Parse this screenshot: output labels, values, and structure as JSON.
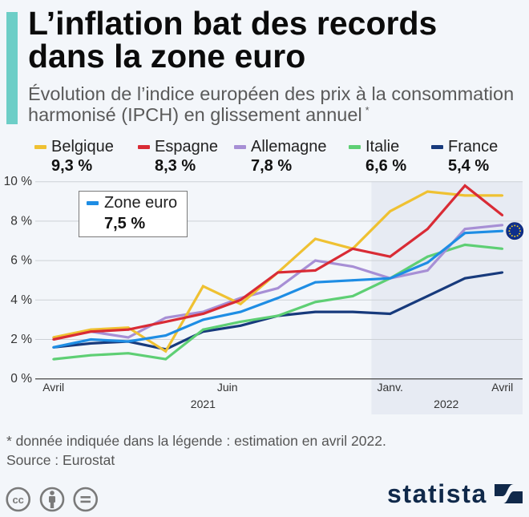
{
  "header": {
    "title_lines": [
      "L’inflation bat des records",
      "dans la zone euro"
    ],
    "subtitle_lines": [
      "Évolution de l’indice européen des prix à la consommation",
      "harmonisé (IPCH) en glissement annuel"
    ],
    "subtitle_footnote_marker": "*"
  },
  "footer": {
    "note": "* donnée indiquée dans la légende : estimation en avril 2022.",
    "source": "Source : Eurostat",
    "brand": "statista",
    "cc_label": "cc",
    "license_icons": [
      "creative-commons-icon",
      "attribution-icon",
      "no-derivatives-icon"
    ]
  },
  "colors": {
    "accent_bar": "#6dcec7",
    "background": "#f3f6fa",
    "highlight_band": "#e7ebf3",
    "brand_navy": "#10294a",
    "eu_flag_blue": "#0e2f8c",
    "eu_flag_stars": "#f2d01c"
  },
  "chart_data": {
    "type": "line",
    "title": "L’inflation bat des records dans la zone euro",
    "subtitle": "Évolution de l’indice européen des prix à la consommation harmonisé (IPCH) en glissement annuel *",
    "xlabel": "",
    "ylabel": "",
    "x": [
      "2021-04",
      "2021-05",
      "2021-06",
      "2021-07",
      "2021-08",
      "2021-09",
      "2021-10",
      "2021-11",
      "2021-12",
      "2022-01",
      "2022-02",
      "2022-03",
      "2022-04"
    ],
    "x_ticks": [
      {
        "label": "Avril",
        "at": 0
      },
      {
        "label": "Juin",
        "at": 4.65
      },
      {
        "label": "Janv.",
        "at": 9
      },
      {
        "label": "Avril",
        "at": 12
      }
    ],
    "x_groups": [
      {
        "label": "2021",
        "from": 0,
        "to": 8,
        "highlighted": false
      },
      {
        "label": "2022",
        "from": 9,
        "to": 12,
        "highlighted": true
      }
    ],
    "y_ticks": [
      0,
      2,
      4,
      6,
      8,
      10
    ],
    "y_tick_labels": [
      "0 %",
      "2 %",
      "4 %",
      "6 %",
      "8 %",
      "10 %"
    ],
    "ylim": [
      0,
      10
    ],
    "unit": "%",
    "grid": true,
    "legend": "top",
    "series": [
      {
        "name": "Belgique",
        "color": "#efc132",
        "legend_value": "9,3 %",
        "values": [
          2.1,
          2.5,
          2.6,
          1.4,
          4.7,
          3.8,
          5.4,
          7.1,
          6.6,
          8.5,
          9.5,
          9.3,
          9.3
        ]
      },
      {
        "name": "Espagne",
        "color": "#d92b35",
        "legend_value": "8,3 %",
        "values": [
          2.0,
          2.4,
          2.5,
          2.9,
          3.3,
          4.0,
          5.4,
          5.5,
          6.6,
          6.2,
          7.6,
          9.8,
          8.3
        ]
      },
      {
        "name": "Allemagne",
        "color": "#a78fd5",
        "legend_value": "7,8 %",
        "values": [
          2.1,
          2.4,
          2.1,
          3.1,
          3.4,
          4.1,
          4.6,
          6.0,
          5.7,
          5.1,
          5.5,
          7.6,
          7.8
        ]
      },
      {
        "name": "Italie",
        "color": "#5ecf74",
        "legend_value": "6,6 %",
        "values": [
          1.0,
          1.2,
          1.3,
          1.0,
          2.5,
          2.9,
          3.2,
          3.9,
          4.2,
          5.1,
          6.2,
          6.8,
          6.6
        ]
      },
      {
        "name": "France",
        "color": "#173a7c",
        "legend_value": "5,4 %",
        "values": [
          1.6,
          1.8,
          1.9,
          1.5,
          2.4,
          2.7,
          3.2,
          3.4,
          3.4,
          3.3,
          4.2,
          5.1,
          5.4
        ]
      },
      {
        "name": "Zone euro",
        "color": "#1e8de4",
        "legend_value": "7,5 %",
        "values": [
          1.6,
          2.0,
          1.9,
          2.2,
          3.0,
          3.4,
          4.1,
          4.9,
          5.0,
          5.1,
          5.9,
          7.4,
          7.5
        ],
        "end_marker": "eu-flag"
      }
    ]
  }
}
